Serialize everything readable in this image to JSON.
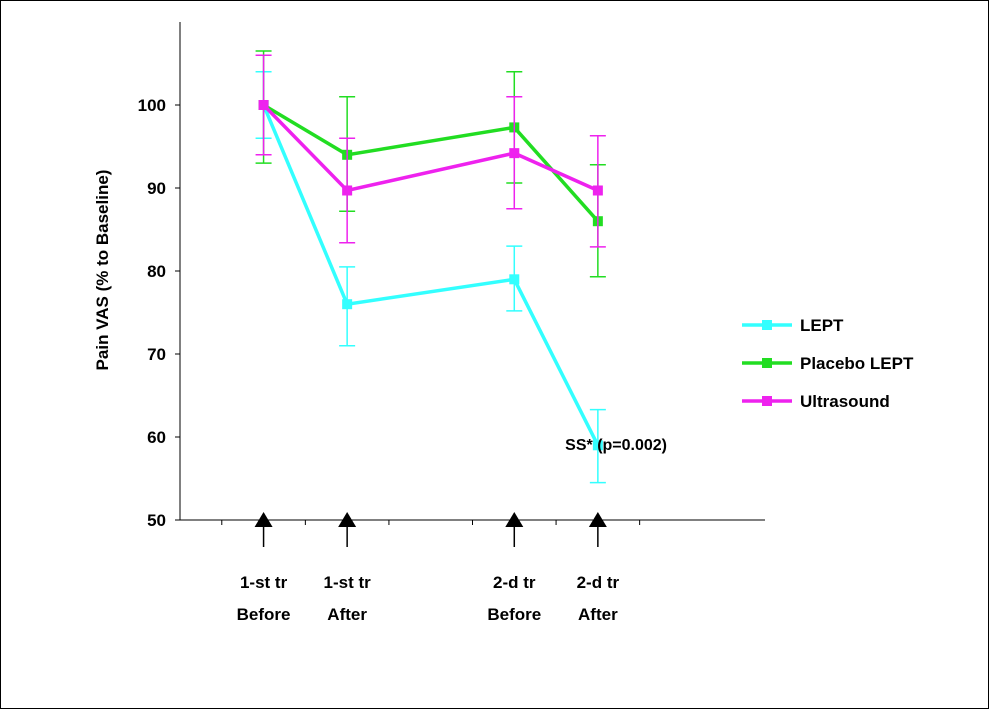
{
  "chart_data": {
    "type": "line",
    "title": "",
    "xlabel": "",
    "ylabel": "Pain VAS (% to Baseline)",
    "ylim": [
      50,
      110
    ],
    "yticks": [
      50,
      60,
      70,
      80,
      90,
      100
    ],
    "x_slots": 6,
    "timepoints": [
      {
        "slot": 1,
        "line1": "1-st tr",
        "line2": "Before"
      },
      {
        "slot": 2,
        "line1": "1-st tr",
        "line2": "After"
      },
      {
        "slot": 4,
        "line1": "2-d tr",
        "line2": "Before"
      },
      {
        "slot": 5,
        "line1": "2-d tr",
        "line2": "After"
      }
    ],
    "series": [
      {
        "name": "LEPT",
        "color": "#33FFFF",
        "values": [
          100,
          76,
          79,
          59
        ],
        "err_high": [
          104,
          80.5,
          83,
          63.3
        ],
        "err_low": [
          96,
          71,
          75.2,
          54.5
        ]
      },
      {
        "name": "Placebo LEPT",
        "color": "#22DD22",
        "values": [
          100,
          94,
          97.3,
          86
        ],
        "err_high": [
          106.5,
          101,
          104,
          92.8
        ],
        "err_low": [
          93,
          87.2,
          90.6,
          79.3
        ]
      },
      {
        "name": "Ultrasound",
        "color": "#EE22EE",
        "values": [
          100,
          89.7,
          94.2,
          89.7
        ],
        "err_high": [
          106,
          96,
          101,
          96.3
        ],
        "err_low": [
          94,
          83.4,
          87.5,
          82.9
        ]
      }
    ],
    "annotation": {
      "text": "SS* (p=0.002)"
    },
    "legend_position": "right",
    "grid": false
  }
}
